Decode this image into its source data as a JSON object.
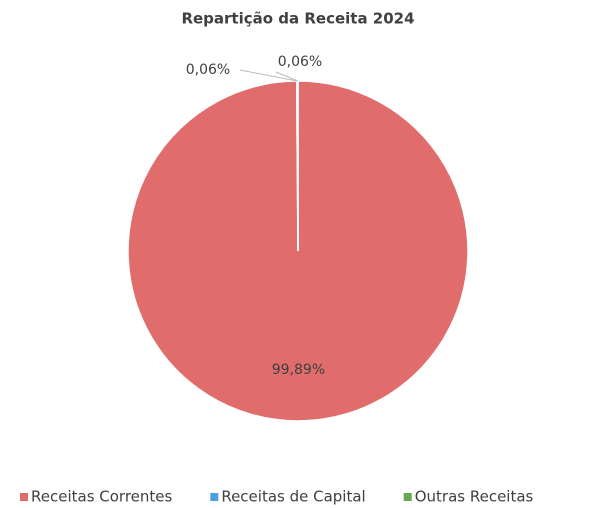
{
  "chart_data": {
    "type": "pie",
    "title": "Repartição da Receita 2024",
    "categories": [
      "Receitas Correntes",
      "Receitas de Capital",
      "Outras Receitas"
    ],
    "values": [
      99.89,
      0.06,
      0.06
    ],
    "value_labels": [
      "99,89%",
      "0,06%",
      "0,06%"
    ],
    "colors": [
      "#e06c6c",
      "#4a9fdc",
      "#6aa84f"
    ],
    "legend": "bottom"
  }
}
